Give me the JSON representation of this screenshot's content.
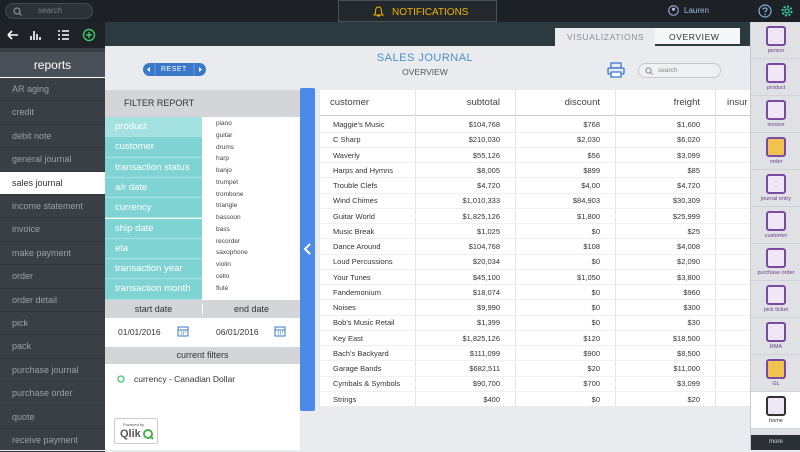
{
  "top_bar": {
    "search_placeholder": "search",
    "notifications": "NOTIFICATIONS",
    "user": "Lauren"
  },
  "sidebar": {
    "title": "reports",
    "items": [
      "AR aging",
      "credit",
      "debit note",
      "general journal",
      "sales journal",
      "income statement",
      "invoice",
      "make payment",
      "order",
      "order detail",
      "pick",
      "pack",
      "purchase journal",
      "purchase order",
      "quote",
      "receive payment"
    ]
  },
  "tabs": [
    "VISUALIZATIONS",
    "OVERVIEW"
  ],
  "header": {
    "title": "SALES JOURNAL",
    "subtitle": "OVERVIEW",
    "reset": "RESET",
    "search_placeholder": "search"
  },
  "filter": {
    "title": "FILTER REPORT",
    "fields": [
      "product",
      "customer",
      "transaction status",
      "a/r date",
      "currency",
      "ship date",
      "eta",
      "transaction year",
      "transaction month"
    ],
    "values": [
      "piano",
      "guitar",
      "drums",
      "harp",
      "banjo",
      "trumpet",
      "trombone",
      "triangle",
      "bassoon",
      "bass",
      "recorder",
      "saxophone",
      "violin",
      "cello",
      "flute"
    ],
    "start_label": "start date",
    "end_label": "end date",
    "start_date": "01/01/2016",
    "end_date": "06/01/2016",
    "current_filters_label": "current filters",
    "current_filter": "currency - Canadian Dollar"
  },
  "badge": {
    "powered_by": "Powered by",
    "brand": "Qlik"
  },
  "table": {
    "columns": [
      "customer",
      "subtotal",
      "discount",
      "freight",
      "insur"
    ],
    "rows": [
      [
        "Maggie's Music",
        "$104,768",
        "$768",
        "$1,600"
      ],
      [
        "C Sharp",
        "$210,030",
        "$2,030",
        "$6,020"
      ],
      [
        "Waverly",
        "$55,126",
        "$56",
        "$3,099"
      ],
      [
        "Harps and Hymns",
        "$8,005",
        "$899",
        "$85"
      ],
      [
        "Trouble Clefs",
        "$4,720",
        "$4,00",
        "$4,720"
      ],
      [
        "Wind Chimes",
        "$1,010,333",
        "$84,903",
        "$30,309"
      ],
      [
        "Guitar World",
        "$1,825,126",
        "$1,800",
        "$25,999"
      ],
      [
        "Music Break",
        "$1,025",
        "$0",
        "$25"
      ],
      [
        "Dance Around",
        "$104,768",
        "$108",
        "$4,008"
      ],
      [
        "Loud Percussions",
        "$20,034",
        "$0",
        "$2,090"
      ],
      [
        "Your Tunes",
        "$45,100",
        "$1,050",
        "$3,800"
      ],
      [
        "Fandemonium",
        "$18,074",
        "$0",
        "$960"
      ],
      [
        "Noises",
        "$9,990",
        "$0",
        "$300"
      ],
      [
        "Bob's Music Retail",
        "$1,399",
        "$0",
        "$30"
      ],
      [
        "Key East",
        "$1,825,126",
        "$120",
        "$18,500"
      ],
      [
        "Bach's Backyard",
        "$111,099",
        "$900",
        "$8,500"
      ],
      [
        "Garage Bands",
        "$682,511",
        "$20",
        "$11,000"
      ],
      [
        "Cymbals & Symbols",
        "$90,700",
        "$700",
        "$3,099"
      ],
      [
        "Strings",
        "$400",
        "$0",
        "$20"
      ]
    ]
  },
  "right_nav": [
    "person",
    "product",
    "invoice",
    "order",
    "journal entry",
    "customer",
    "purchase order",
    "pick ticket",
    "RMA",
    "GL",
    "home",
    "more"
  ]
}
